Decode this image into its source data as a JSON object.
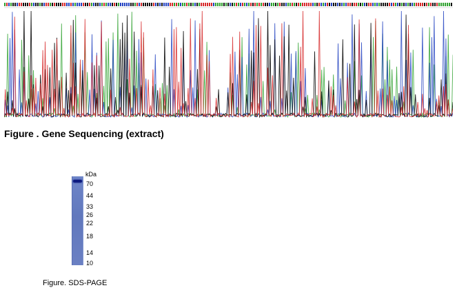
{
  "sequencing": {
    "caption": "Figure . Gene Sequencing (extract)",
    "trace_colors": {
      "A": "#2ca02c",
      "C": "#1f3fbf",
      "G": "#111111",
      "T": "#d62728"
    },
    "base_letter_colors": [
      "#2ca02c",
      "#1f3fbf",
      "#111111",
      "#d62728"
    ]
  },
  "sds_page": {
    "unit_label": "kDa",
    "markers": [
      "70",
      "44",
      "33",
      "26",
      "22",
      "18",
      "14",
      "10"
    ],
    "caption": "Figure. SDS-PAGE",
    "lane_color": "#6a7fc2",
    "band_color": "#0d1a80"
  }
}
